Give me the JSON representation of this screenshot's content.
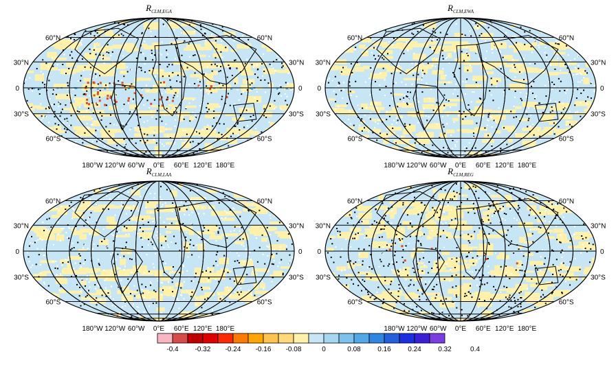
{
  "panels": [
    {
      "title_main": "R",
      "title_sub": "CLM,EGA"
    },
    {
      "title_main": "R",
      "title_sub": "CLM,EWA"
    },
    {
      "title_main": "R",
      "title_sub": "CLM,LAA"
    },
    {
      "title_main": "R",
      "title_sub": "CLM,REG"
    }
  ],
  "lat_labels": {
    "left": [
      "60°N",
      "30°N",
      "0",
      "30°S",
      "60°S"
    ],
    "right": [
      "60°N",
      "30°N",
      "0",
      "30°S",
      "60°S"
    ]
  },
  "lon_labels": [
    "180°W",
    "120°W",
    "60°W",
    "0°E",
    "60°E",
    "120°E",
    "180°E"
  ],
  "colorbar": {
    "colors": [
      "#f7b6c1",
      "#d94a4a",
      "#c00000",
      "#e00000",
      "#ff2a00",
      "#ff7a00",
      "#ffa500",
      "#ffc24a",
      "#ffd97a",
      "#fff2a8",
      "#c6e6f5",
      "#a6d6f0",
      "#7cc2ec",
      "#4fa9e6",
      "#2f86e0",
      "#2560dc",
      "#1d2ee0",
      "#3a1ed8",
      "#7a3ee0"
    ],
    "tick_labels": [
      "-0.4",
      "-0.32",
      "-0.24",
      "-0.16",
      "-0.08",
      "0",
      "0.08",
      "0.16",
      "0.24",
      "0.32",
      "0.4"
    ]
  },
  "map_colors": {
    "ocean_base": "#c6e6f5",
    "positive_light": "#fff2a8",
    "negative": "#e04a1a",
    "positive_strong": "#4fa9e6",
    "outline": "#000000",
    "stipple_dark": "#000000",
    "stipple_light": "#ffffff"
  }
}
